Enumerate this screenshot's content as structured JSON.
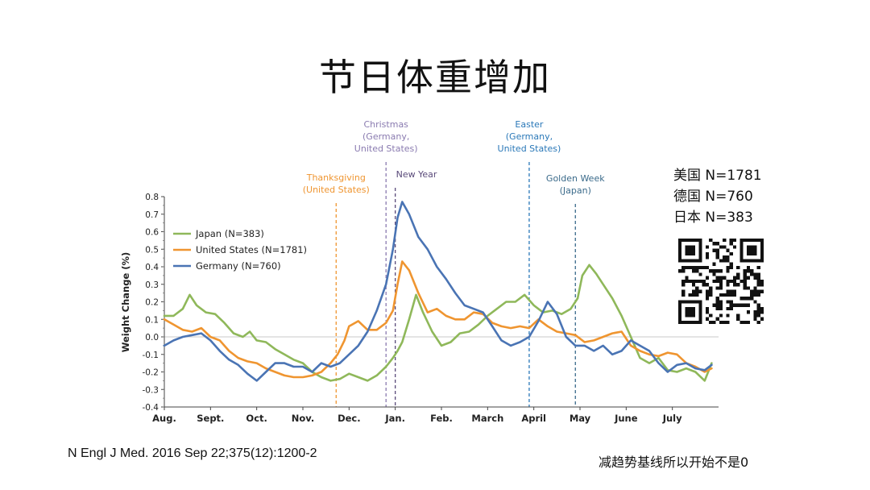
{
  "slide": {
    "title": "节日体重增加",
    "sample_sizes": [
      "美国 N=1781",
      "德国 N=760",
      "日本 N=383"
    ],
    "citation": "N Engl J Med. 2016 Sep 22;375(12):1200-2",
    "note": "减趋势基线所以开始不是0"
  },
  "colors": {
    "japan": "#8fb85a",
    "united_states": "#ef9530",
    "germany": "#4a74b4",
    "us_holiday": "#ef9530",
    "christmas": "#8a7bb0",
    "new_year": "#5a4a7a",
    "easter": "#2a78b8",
    "golden_week": "#3a6a8a"
  },
  "chart_data": {
    "type": "line",
    "xlabel": "",
    "ylabel": "Weight Change (%)",
    "xlim": [
      0,
      12
    ],
    "ylim": [
      -0.4,
      0.8
    ],
    "yticks": [
      "0.8",
      "0.7",
      "0.6",
      "0.5",
      "0.4",
      "0.3",
      "0.2",
      "0.1",
      "0.0",
      "-0.1",
      "-0.2",
      "-0.3",
      "-0.4"
    ],
    "ytick_values": [
      0.8,
      0.7,
      0.6,
      0.5,
      0.4,
      0.3,
      0.2,
      0.1,
      0.0,
      -0.1,
      -0.2,
      -0.3,
      -0.4
    ],
    "xticks": [
      "Aug.",
      "Sept.",
      "Oct.",
      "Nov.",
      "Dec.",
      "Jan.",
      "Feb.",
      "March",
      "April",
      "May",
      "June",
      "July"
    ],
    "xtick_values": [
      0,
      1,
      2,
      3,
      4,
      5,
      6,
      7,
      8,
      9,
      10,
      11
    ],
    "legend_position": "top-left",
    "series": [
      {
        "name": "Japan (N=383)",
        "color_key": "japan",
        "x": [
          0,
          0.2,
          0.4,
          0.55,
          0.7,
          0.9,
          1.1,
          1.3,
          1.5,
          1.7,
          1.85,
          2.0,
          2.2,
          2.4,
          2.6,
          2.8,
          3.0,
          3.2,
          3.4,
          3.6,
          3.8,
          4.0,
          4.2,
          4.4,
          4.6,
          4.8,
          4.95,
          5.05,
          5.15,
          5.3,
          5.45,
          5.6,
          5.8,
          6.0,
          6.2,
          6.4,
          6.6,
          6.8,
          7.0,
          7.2,
          7.4,
          7.6,
          7.8,
          8.0,
          8.2,
          8.4,
          8.6,
          8.8,
          8.95,
          9.05,
          9.2,
          9.35,
          9.5,
          9.7,
          9.9,
          10.1,
          10.3,
          10.5,
          10.7,
          10.9,
          11.1,
          11.3,
          11.5,
          11.7,
          11.85
        ],
        "values": [
          0.12,
          0.12,
          0.16,
          0.24,
          0.18,
          0.14,
          0.13,
          0.08,
          0.02,
          0.0,
          0.03,
          -0.02,
          -0.03,
          -0.07,
          -0.1,
          -0.13,
          -0.15,
          -0.2,
          -0.23,
          -0.25,
          -0.24,
          -0.21,
          -0.23,
          -0.25,
          -0.22,
          -0.17,
          -0.12,
          -0.08,
          -0.03,
          0.1,
          0.24,
          0.14,
          0.03,
          -0.05,
          -0.03,
          0.02,
          0.03,
          0.07,
          0.12,
          0.16,
          0.2,
          0.2,
          0.24,
          0.18,
          0.14,
          0.15,
          0.13,
          0.16,
          0.22,
          0.35,
          0.41,
          0.36,
          0.3,
          0.22,
          0.12,
          0.0,
          -0.12,
          -0.15,
          -0.12,
          -0.19,
          -0.2,
          -0.18,
          -0.2,
          -0.25,
          -0.15
        ]
      },
      {
        "name": "United States (N=1781)",
        "color_key": "united_states",
        "x": [
          0,
          0.2,
          0.4,
          0.6,
          0.8,
          1.0,
          1.2,
          1.4,
          1.6,
          1.8,
          2.0,
          2.2,
          2.4,
          2.6,
          2.8,
          3.0,
          3.2,
          3.4,
          3.6,
          3.75,
          3.9,
          4.0,
          4.2,
          4.4,
          4.6,
          4.8,
          4.95,
          5.05,
          5.15,
          5.3,
          5.5,
          5.7,
          5.9,
          6.1,
          6.3,
          6.5,
          6.7,
          6.9,
          7.1,
          7.3,
          7.5,
          7.7,
          7.9,
          8.1,
          8.3,
          8.5,
          8.7,
          8.9,
          9.1,
          9.3,
          9.5,
          9.7,
          9.9,
          10.1,
          10.3,
          10.5,
          10.7,
          10.9,
          11.1,
          11.3,
          11.5,
          11.7,
          11.85
        ],
        "values": [
          0.1,
          0.07,
          0.04,
          0.03,
          0.05,
          0.0,
          -0.02,
          -0.08,
          -0.12,
          -0.14,
          -0.15,
          -0.18,
          -0.2,
          -0.22,
          -0.23,
          -0.23,
          -0.22,
          -0.2,
          -0.15,
          -0.1,
          -0.02,
          0.06,
          0.09,
          0.04,
          0.04,
          0.08,
          0.15,
          0.3,
          0.43,
          0.38,
          0.25,
          0.14,
          0.16,
          0.12,
          0.1,
          0.1,
          0.14,
          0.13,
          0.08,
          0.06,
          0.05,
          0.06,
          0.05,
          0.1,
          0.06,
          0.03,
          0.02,
          0.01,
          -0.03,
          -0.02,
          0.0,
          0.02,
          0.03,
          -0.05,
          -0.08,
          -0.1,
          -0.11,
          -0.09,
          -0.1,
          -0.15,
          -0.17,
          -0.2,
          -0.18
        ]
      },
      {
        "name": "Germany (N=760)",
        "color_key": "germany",
        "x": [
          0,
          0.2,
          0.4,
          0.6,
          0.8,
          1.0,
          1.2,
          1.4,
          1.6,
          1.8,
          2.0,
          2.2,
          2.4,
          2.6,
          2.8,
          3.0,
          3.2,
          3.4,
          3.6,
          3.8,
          4.0,
          4.2,
          4.4,
          4.6,
          4.8,
          4.95,
          5.05,
          5.15,
          5.3,
          5.5,
          5.7,
          5.9,
          6.1,
          6.3,
          6.5,
          6.7,
          6.9,
          7.1,
          7.3,
          7.5,
          7.7,
          7.9,
          8.1,
          8.3,
          8.5,
          8.7,
          8.9,
          9.1,
          9.3,
          9.5,
          9.7,
          9.9,
          10.1,
          10.3,
          10.5,
          10.7,
          10.9,
          11.1,
          11.3,
          11.5,
          11.7,
          11.85
        ],
        "values": [
          -0.05,
          -0.02,
          0.0,
          0.01,
          0.02,
          -0.02,
          -0.08,
          -0.13,
          -0.16,
          -0.21,
          -0.25,
          -0.2,
          -0.15,
          -0.15,
          -0.17,
          -0.17,
          -0.2,
          -0.15,
          -0.17,
          -0.15,
          -0.1,
          -0.05,
          0.03,
          0.15,
          0.3,
          0.5,
          0.68,
          0.77,
          0.7,
          0.57,
          0.5,
          0.4,
          0.33,
          0.25,
          0.18,
          0.16,
          0.14,
          0.06,
          -0.02,
          -0.05,
          -0.03,
          0.0,
          0.09,
          0.2,
          0.13,
          0.0,
          -0.05,
          -0.05,
          -0.08,
          -0.05,
          -0.1,
          -0.08,
          -0.02,
          -0.05,
          -0.08,
          -0.15,
          -0.2,
          -0.16,
          -0.15,
          -0.18,
          -0.19,
          -0.16
        ]
      }
    ],
    "holidays": [
      {
        "label_lines": [
          "Thanksgiving",
          "(United States)"
        ],
        "x": 3.72,
        "color_key": "us_holiday"
      },
      {
        "label_lines": [
          "Christmas",
          "(Germany,",
          "United States)"
        ],
        "x": 4.8,
        "color_key": "christmas"
      },
      {
        "label_lines": [
          "New Year"
        ],
        "x": 5.0,
        "color_key": "new_year"
      },
      {
        "label_lines": [
          "Easter",
          "(Germany,",
          "United States)"
        ],
        "x": 7.9,
        "color_key": "easter"
      },
      {
        "label_lines": [
          "Golden Week",
          "(Japan)"
        ],
        "x": 8.9,
        "color_key": "golden_week"
      }
    ]
  }
}
